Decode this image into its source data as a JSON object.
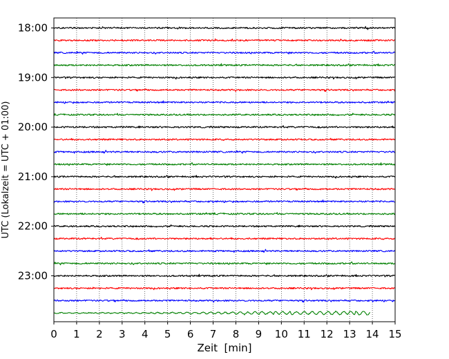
{
  "chart_data": {
    "type": "line",
    "title": "",
    "xlabel": "Zeit  [min]",
    "ylabel": "UTC (Lokalzeit = UTC + 01:00)",
    "xlim": [
      0,
      15
    ],
    "x_ticks": [
      0,
      1,
      2,
      3,
      4,
      5,
      6,
      7,
      8,
      9,
      10,
      11,
      12,
      13,
      14,
      15
    ],
    "x_tick_labels": [
      "0",
      "1",
      "2",
      "3",
      "4",
      "5",
      "6",
      "7",
      "8",
      "9",
      "10",
      "11",
      "12",
      "13",
      "14",
      "15"
    ],
    "y_tick_labels": [
      "18:00",
      "19:00",
      "20:00",
      "21:00",
      "22:00",
      "23:00"
    ],
    "grid": "vertical dotted",
    "series_colors": [
      "#000000",
      "#ff0000",
      "#0000ff",
      "#008000"
    ],
    "traces": [
      {
        "start": "18:00",
        "end_min": 15
      },
      {
        "start": "18:15",
        "end_min": 15
      },
      {
        "start": "18:30",
        "end_min": 15
      },
      {
        "start": "18:45",
        "end_min": 15
      },
      {
        "start": "19:00",
        "end_min": 15
      },
      {
        "start": "19:15",
        "end_min": 15
      },
      {
        "start": "19:30",
        "end_min": 15
      },
      {
        "start": "19:45",
        "end_min": 15
      },
      {
        "start": "20:00",
        "end_min": 15
      },
      {
        "start": "20:15",
        "end_min": 15
      },
      {
        "start": "20:30",
        "end_min": 15
      },
      {
        "start": "20:45",
        "end_min": 15
      },
      {
        "start": "21:00",
        "end_min": 15
      },
      {
        "start": "21:15",
        "end_min": 15
      },
      {
        "start": "21:30",
        "end_min": 15
      },
      {
        "start": "21:45",
        "end_min": 15
      },
      {
        "start": "22:00",
        "end_min": 15
      },
      {
        "start": "22:15",
        "end_min": 15
      },
      {
        "start": "22:30",
        "end_min": 15
      },
      {
        "start": "22:45",
        "end_min": 15
      },
      {
        "start": "23:00",
        "end_min": 15
      },
      {
        "start": "23:15",
        "end_min": 15
      },
      {
        "start": "23:30",
        "end_min": 15
      },
      {
        "start": "23:45",
        "end_min": 13.9
      }
    ]
  }
}
